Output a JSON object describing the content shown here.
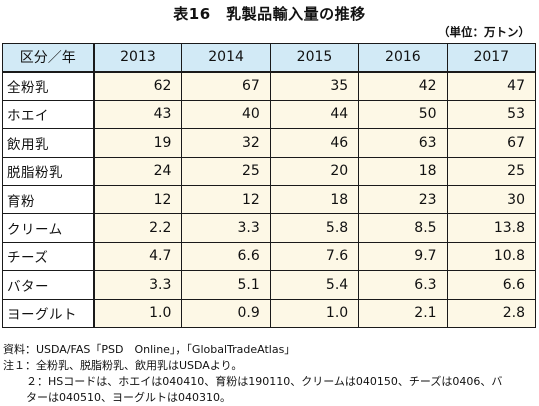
{
  "title": "表16　乳製品輸入量の推移",
  "unit": "（単位：万トン）",
  "table": {
    "corner": "区分／年",
    "years": [
      "2013",
      "2014",
      "2015",
      "2016",
      "2017"
    ],
    "rows": [
      {
        "label": "全粉乳",
        "values": [
          "62",
          "67",
          "35",
          "42",
          "47"
        ]
      },
      {
        "label": "ホエイ",
        "values": [
          "43",
          "40",
          "44",
          "50",
          "53"
        ]
      },
      {
        "label": "飲用乳",
        "values": [
          "19",
          "32",
          "46",
          "63",
          "67"
        ]
      },
      {
        "label": "脱脂粉乳",
        "values": [
          "24",
          "25",
          "20",
          "18",
          "25"
        ]
      },
      {
        "label": "育粉",
        "values": [
          "12",
          "12",
          "18",
          "23",
          "30"
        ]
      },
      {
        "label": "クリーム",
        "values": [
          "2.2",
          "3.3",
          "5.8",
          "8.5",
          "13.8"
        ]
      },
      {
        "label": "チーズ",
        "values": [
          "4.7",
          "6.6",
          "7.6",
          "9.7",
          "10.8"
        ]
      },
      {
        "label": "バター",
        "values": [
          "3.3",
          "5.1",
          "5.4",
          "6.3",
          "6.6"
        ]
      },
      {
        "label": "ヨーグルト",
        "values": [
          "1.0",
          "0.9",
          "1.0",
          "2.1",
          "2.8"
        ]
      }
    ]
  },
  "notes": {
    "source": "資料：USDA/FAS「PSD　Online」，「GlobalTradeAtlas」",
    "note1": "注１：全粉乳、脱脂粉乳、飲用乳はUSDAより。",
    "note2a": "２：HSコードは、ホエイは040410、育粉は190110、クリームは040150、チーズは0406、バ",
    "note2b": "ターは040510、ヨーグルトは040310。"
  }
}
